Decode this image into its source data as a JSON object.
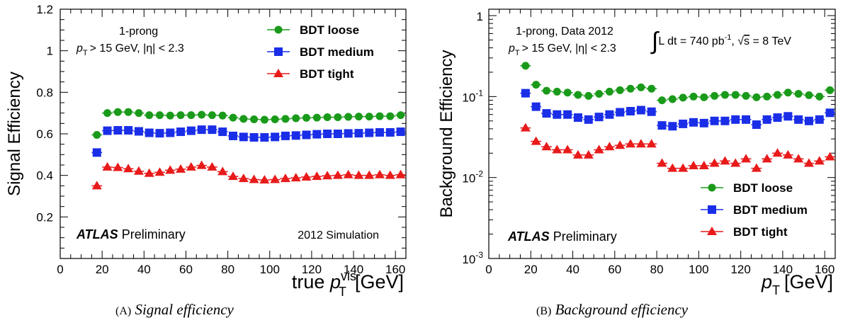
{
  "chart_data": [
    {
      "type": "scatter",
      "panel": "A",
      "ylabel": "Signal Efficiency",
      "xlabel_main": "true",
      "xlabel_var": "p",
      "xlabel_sup": "vis",
      "xlabel_sub": "T",
      "xlabel_unit": "[GeV]",
      "xlim": [
        0,
        165
      ],
      "ylim": [
        0,
        1.2
      ],
      "yscale": "linear",
      "x_ticks": [
        0,
        20,
        40,
        60,
        80,
        100,
        120,
        140,
        160
      ],
      "y_ticks": [
        0.2,
        0.4,
        0.6,
        0.8,
        1,
        1.2
      ],
      "y_tick_labels": [
        "0.2",
        "0.4",
        "0.6",
        "0.8",
        "1",
        "1.2"
      ],
      "annotations": {
        "line1": "1-prong",
        "line2_var": "p",
        "line2_sub": "T",
        "line2_rest": "> 15 GeV, |η| < 2.3",
        "atlas": "ATLAS",
        "prelim": "Preliminary",
        "sim": "2012 Simulation"
      },
      "legend_position": "top-right",
      "x": [
        17.5,
        22.5,
        27.5,
        32.5,
        37.5,
        42.5,
        47.5,
        52.5,
        57.5,
        62.5,
        67.5,
        72.5,
        77.5,
        82.5,
        87.5,
        92.5,
        97.5,
        102.5,
        107.5,
        112.5,
        117.5,
        122.5,
        127.5,
        132.5,
        137.5,
        142.5,
        147.5,
        152.5,
        157.5,
        162.5
      ],
      "series": [
        {
          "name": "BDT loose",
          "color": "#1a9a1a",
          "marker": "circle",
          "values": [
            0.595,
            0.7,
            0.705,
            0.705,
            0.7,
            0.69,
            0.69,
            0.688,
            0.69,
            0.69,
            0.692,
            0.69,
            0.688,
            0.678,
            0.672,
            0.67,
            0.668,
            0.67,
            0.672,
            0.675,
            0.677,
            0.678,
            0.68,
            0.68,
            0.682,
            0.683,
            0.683,
            0.685,
            0.685,
            0.69
          ]
        },
        {
          "name": "BDT medium",
          "color": "#1a2ee8",
          "marker": "square",
          "values": [
            0.51,
            0.615,
            0.617,
            0.617,
            0.612,
            0.605,
            0.603,
            0.605,
            0.61,
            0.615,
            0.62,
            0.62,
            0.61,
            0.59,
            0.585,
            0.583,
            0.583,
            0.585,
            0.59,
            0.592,
            0.595,
            0.598,
            0.6,
            0.6,
            0.602,
            0.603,
            0.605,
            0.607,
            0.607,
            0.61
          ]
        },
        {
          "name": "BDT tight",
          "color": "#e81a1a",
          "marker": "triangle",
          "values": [
            0.35,
            0.44,
            0.438,
            0.432,
            0.42,
            0.41,
            0.415,
            0.425,
            0.43,
            0.44,
            0.448,
            0.44,
            0.418,
            0.395,
            0.385,
            0.38,
            0.378,
            0.38,
            0.385,
            0.388,
            0.392,
            0.395,
            0.398,
            0.4,
            0.403,
            0.4,
            0.4,
            0.403,
            0.4,
            0.403
          ]
        }
      ]
    },
    {
      "type": "scatter",
      "panel": "B",
      "ylabel": "Background Efficiency",
      "xlabel_var": "p",
      "xlabel_sub": "T",
      "xlabel_unit": "[GeV]",
      "xlim": [
        0,
        165
      ],
      "ylim": [
        0.001,
        1.2
      ],
      "yscale": "log",
      "x_ticks": [
        0,
        20,
        40,
        60,
        80,
        100,
        120,
        140,
        160
      ],
      "y_ticks": [
        0.001,
        0.01,
        0.1,
        1
      ],
      "y_tick_base": [
        "10",
        "10",
        "10",
        "1"
      ],
      "y_tick_exp": [
        "-3",
        "-2",
        "-1",
        ""
      ],
      "annotations": {
        "line1": "1-prong, Data 2012",
        "line2_var": "p",
        "line2_sub": "T",
        "line2_rest": "> 15 GeV, |η| < 2.3",
        "lumi_integral": "∫",
        "lumi_text": "L dt = 740 pb",
        "lumi_exp": "-1",
        "lumi_sep": ", ",
        "lumi_sqrt": "√",
        "lumi_s": "s",
        "lumi_energy": " = 8 TeV",
        "atlas": "ATLAS",
        "prelim": "Preliminary"
      },
      "legend_position": "bottom-right",
      "x": [
        17.5,
        22.5,
        27.5,
        32.5,
        37.5,
        42.5,
        47.5,
        52.5,
        57.5,
        62.5,
        67.5,
        72.5,
        77.5,
        82.5,
        87.5,
        92.5,
        97.5,
        102.5,
        107.5,
        112.5,
        117.5,
        122.5,
        127.5,
        132.5,
        137.5,
        142.5,
        147.5,
        152.5,
        157.5,
        162.5
      ],
      "series": [
        {
          "name": "BDT loose",
          "color": "#1a9a1a",
          "marker": "circle",
          "values": [
            0.24,
            0.14,
            0.118,
            0.115,
            0.112,
            0.105,
            0.102,
            0.108,
            0.115,
            0.12,
            0.125,
            0.13,
            0.125,
            0.09,
            0.093,
            0.097,
            0.1,
            0.098,
            0.102,
            0.105,
            0.105,
            0.102,
            0.098,
            0.1,
            0.105,
            0.112,
            0.108,
            0.104,
            0.1,
            0.12
          ]
        },
        {
          "name": "BDT medium",
          "color": "#1a2ee8",
          "marker": "square",
          "values": [
            0.11,
            0.075,
            0.062,
            0.06,
            0.06,
            0.055,
            0.052,
            0.056,
            0.06,
            0.064,
            0.066,
            0.068,
            0.065,
            0.044,
            0.043,
            0.046,
            0.048,
            0.047,
            0.05,
            0.05,
            0.052,
            0.052,
            0.045,
            0.052,
            0.055,
            0.057,
            0.052,
            0.05,
            0.052,
            0.063
          ]
        },
        {
          "name": "BDT tight",
          "color": "#e81a1a",
          "marker": "triangle",
          "values": [
            0.041,
            0.028,
            0.024,
            0.022,
            0.022,
            0.019,
            0.019,
            0.022,
            0.024,
            0.025,
            0.026,
            0.026,
            0.026,
            0.015,
            0.013,
            0.013,
            0.014,
            0.014,
            0.015,
            0.016,
            0.015,
            0.017,
            0.013,
            0.017,
            0.02,
            0.019,
            0.017,
            0.015,
            0.016,
            0.018
          ]
        }
      ]
    }
  ],
  "captions": [
    {
      "label": "(A)",
      "text": "Signal efficiency"
    },
    {
      "label": "(B)",
      "text": "Background efficiency"
    }
  ]
}
